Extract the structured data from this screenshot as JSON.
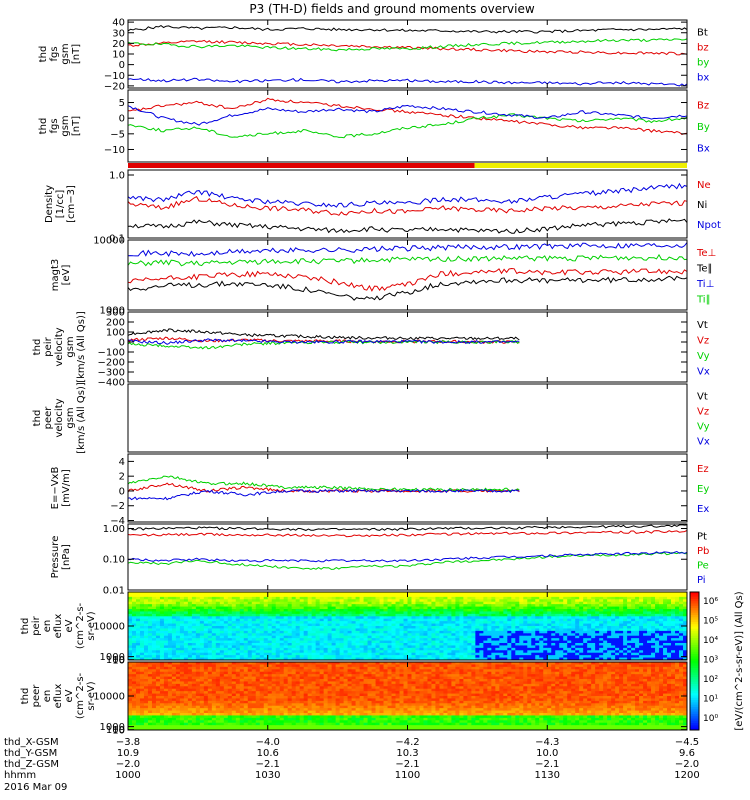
{
  "title": "P3 (TH-D) fields and ground moments overview",
  "colors": {
    "black": "#000000",
    "red": "#e00000",
    "green": "#00d000",
    "blue": "#0000e0",
    "yellow": "#f0f000"
  },
  "chart_data": [
    {
      "type": "line",
      "ylabel": [
        "thd",
        "fgs",
        "gsm",
        "[nT]"
      ],
      "ylim": [
        -22,
        42
      ],
      "yticks": [
        "40",
        "30",
        "20",
        "10",
        "0",
        "−10",
        "−20"
      ],
      "ytickvals": [
        40,
        30,
        20,
        10,
        0,
        -10,
        -20
      ],
      "series": [
        {
          "name": "Bt",
          "color": "black",
          "values": [
            32,
            36,
            34,
            35,
            33,
            34,
            33,
            33,
            32,
            32,
            31,
            31,
            31,
            32,
            33,
            33,
            34
          ]
        },
        {
          "name": "bz",
          "color": "red",
          "values": [
            18,
            20,
            22,
            21,
            20,
            19,
            18,
            17,
            16,
            15,
            14,
            13,
            12,
            12,
            11,
            11,
            10
          ]
        },
        {
          "name": "by",
          "color": "green",
          "values": [
            20,
            19,
            17,
            18,
            16,
            15,
            14,
            15,
            15,
            17,
            19,
            20,
            21,
            22,
            23,
            23,
            24
          ]
        },
        {
          "name": "bx",
          "color": "blue",
          "values": [
            -13,
            -15,
            -14,
            -16,
            -15,
            -14,
            -16,
            -15,
            -15,
            -16,
            -16,
            -17,
            -17,
            -18,
            -17,
            -18,
            -19
          ]
        }
      ]
    },
    {
      "type": "line",
      "ylabel": [
        "thd",
        "fgs",
        "gsm",
        "[nT]"
      ],
      "ylim": [
        -14,
        9
      ],
      "yticks": [
        "5",
        "0",
        "−5",
        "−10"
      ],
      "ytickvals": [
        5,
        0,
        -5,
        -10
      ],
      "series": [
        {
          "name": "Bz",
          "color": "red",
          "values": [
            2,
            4,
            5,
            3,
            6,
            5,
            4,
            3,
            2,
            1,
            0,
            -1,
            -2,
            -3,
            -3,
            -4,
            -5
          ]
        },
        {
          "name": "By",
          "color": "green",
          "values": [
            -2,
            -4,
            -3,
            -6,
            -5,
            -4,
            -6,
            -5,
            -3,
            -2,
            0,
            1,
            0,
            -1,
            0,
            -1,
            0
          ]
        },
        {
          "name": "Bx",
          "color": "blue",
          "values": [
            4,
            0,
            -2,
            1,
            3,
            2,
            3,
            2,
            4,
            3,
            2,
            1,
            0,
            2,
            1,
            0,
            1
          ]
        }
      ]
    },
    {
      "type": "bar",
      "name": "mode-bar",
      "segments": [
        {
          "from": 0,
          "to": 0.62,
          "color": "red"
        },
        {
          "from": 0.62,
          "to": 1,
          "color": "yellow"
        }
      ]
    },
    {
      "type": "line",
      "scale": "log",
      "ylabel": [
        "Density",
        "[1/cc]",
        "[cm−3]"
      ],
      "ylim": [
        0.1,
        1.2
      ],
      "yticks": [
        "1.0",
        "0.1"
      ],
      "ytickvals": [
        1.0,
        0.1
      ],
      "series": [
        {
          "name": "Ne",
          "color": "red",
          "values": [
            0.35,
            0.3,
            0.42,
            0.33,
            0.3,
            0.28,
            0.25,
            0.27,
            0.26,
            0.3,
            0.28,
            0.27,
            0.3,
            0.3,
            0.32,
            0.35,
            0.36
          ]
        },
        {
          "name": "Ni",
          "color": "black",
          "values": [
            0.16,
            0.15,
            0.18,
            0.16,
            0.15,
            0.14,
            0.13,
            0.14,
            0.13,
            0.14,
            0.13,
            0.13,
            0.14,
            0.16,
            0.17,
            0.18,
            0.19
          ]
        },
        {
          "name": "Npot",
          "color": "blue",
          "values": [
            0.45,
            0.4,
            0.55,
            0.42,
            0.38,
            0.35,
            0.33,
            0.36,
            0.35,
            0.42,
            0.4,
            0.38,
            0.45,
            0.5,
            0.55,
            0.62,
            0.68
          ]
        }
      ]
    },
    {
      "type": "line",
      "scale": "log",
      "ylabel": [
        "magt3",
        "[eV]"
      ],
      "ylim": [
        1000,
        10000
      ],
      "yticks": [
        "10000",
        "1000"
      ],
      "ytickvals": [
        10000,
        1000
      ],
      "series": [
        {
          "name": "Te⊥",
          "color": "red",
          "values": [
            2500,
            2800,
            3000,
            3200,
            3300,
            3000,
            2500,
            2000,
            2300,
            3300,
            3500,
            3600,
            3400,
            3500,
            3500,
            3600,
            3600
          ]
        },
        {
          "name": "Te∥",
          "color": "black",
          "values": [
            2000,
            2200,
            2300,
            2400,
            2300,
            2000,
            1600,
            1400,
            1800,
            2400,
            2600,
            2700,
            2600,
            2700,
            2700,
            2800,
            2800
          ]
        },
        {
          "name": "Ti⊥",
          "color": "blue",
          "values": [
            6500,
            6500,
            6200,
            6800,
            7000,
            7200,
            7200,
            7400,
            7600,
            7800,
            8000,
            8000,
            8200,
            8300,
            8400,
            8500,
            8600
          ]
        },
        {
          "name": "Ti∥",
          "color": "green",
          "values": [
            4500,
            4800,
            4600,
            4800,
            5000,
            5000,
            5000,
            5200,
            5300,
            5400,
            5400,
            5500,
            5500,
            5500,
            5600,
            5600,
            5700
          ]
        }
      ]
    },
    {
      "type": "line",
      "ylabel": [
        "thd",
        "peir",
        "velocity",
        "gsm",
        "[km/s (All Qs)]"
      ],
      "ylim": [
        -400,
        300
      ],
      "yticks": [
        "300",
        "200",
        "100",
        "0",
        "−100",
        "−200",
        "−300",
        "−400"
      ],
      "ytickvals": [
        300,
        200,
        100,
        0,
        -100,
        -200,
        -300,
        -400
      ],
      "series": [
        {
          "name": "Vt",
          "color": "black",
          "values": [
            80,
            120,
            100,
            70,
            60,
            50,
            40,
            40,
            35,
            35,
            35
          ]
        },
        {
          "name": "Vz",
          "color": "red",
          "values": [
            20,
            40,
            10,
            20,
            10,
            10,
            5,
            5,
            5,
            0,
            0
          ]
        },
        {
          "name": "Vy",
          "color": "green",
          "values": [
            -20,
            -40,
            -60,
            -20,
            -10,
            0,
            -5,
            0,
            0,
            0,
            0
          ]
        },
        {
          "name": "Vx",
          "color": "blue",
          "values": [
            10,
            -10,
            20,
            10,
            0,
            0,
            5,
            5,
            0,
            0,
            0
          ]
        }
      ]
    },
    {
      "type": "line",
      "ylabel": [
        "thd",
        "peer",
        "velocity",
        "gsm",
        "[km/s (All Qs)]"
      ],
      "ylim": [
        0,
        1
      ],
      "yticks": [],
      "ytickvals": [],
      "series": [
        {
          "name": "Vt",
          "color": "black",
          "values": []
        },
        {
          "name": "Vz",
          "color": "red",
          "values": []
        },
        {
          "name": "Vy",
          "color": "green",
          "values": []
        },
        {
          "name": "Vx",
          "color": "blue",
          "values": []
        }
      ]
    },
    {
      "type": "line",
      "ylabel": [
        "E=−VxB",
        "[mV/m]"
      ],
      "ylim": [
        -4.2,
        5
      ],
      "yticks": [
        "4",
        "2",
        "0",
        "−2",
        "−4"
      ],
      "ytickvals": [
        4,
        2,
        0,
        -2,
        -4
      ],
      "series": [
        {
          "name": "Ez",
          "color": "red",
          "values": [
            0,
            1,
            0,
            0.5,
            0,
            0,
            0,
            0,
            0,
            0,
            0
          ]
        },
        {
          "name": "Ey",
          "color": "green",
          "values": [
            1,
            2,
            1,
            1,
            0.5,
            0.5,
            0.3,
            0.2,
            0.2,
            0.2,
            0.2
          ]
        },
        {
          "name": "Ex",
          "color": "blue",
          "values": [
            -1,
            -1,
            0,
            -0.5,
            0,
            0,
            0,
            0,
            0,
            0,
            0
          ]
        }
      ]
    },
    {
      "type": "line",
      "scale": "log",
      "ylabel": [
        "Pressure",
        "[nPa]"
      ],
      "ylim": [
        0.01,
        1.4
      ],
      "yticks": [
        "1.00",
        "0.10",
        "0.01"
      ],
      "ytickvals": [
        1.0,
        0.1,
        0.01
      ],
      "series": [
        {
          "name": "Pt",
          "color": "black",
          "values": [
            0.95,
            1.0,
            1.05,
            1.0,
            0.98,
            0.95,
            0.92,
            0.93,
            0.95,
            1.0,
            1.02,
            1.05,
            1.1,
            1.12,
            1.15,
            1.2,
            1.25
          ]
        },
        {
          "name": "Pb",
          "color": "red",
          "values": [
            0.6,
            0.62,
            0.65,
            0.62,
            0.62,
            0.6,
            0.58,
            0.6,
            0.62,
            0.66,
            0.68,
            0.7,
            0.72,
            0.74,
            0.75,
            0.78,
            0.8
          ]
        },
        {
          "name": "Pe",
          "color": "green",
          "values": [
            0.08,
            0.07,
            0.09,
            0.07,
            0.06,
            0.05,
            0.05,
            0.06,
            0.06,
            0.08,
            0.09,
            0.1,
            0.12,
            0.13,
            0.14,
            0.15,
            0.16
          ]
        },
        {
          "name": "Pi",
          "color": "blue",
          "values": [
            0.1,
            0.09,
            0.1,
            0.09,
            0.09,
            0.09,
            0.09,
            0.09,
            0.09,
            0.1,
            0.11,
            0.12,
            0.13,
            0.14,
            0.15,
            0.16,
            0.17
          ]
        }
      ]
    },
    {
      "type": "heatmap",
      "ylabel": [
        "thd",
        "peir",
        "en",
        "eflux",
        "eV",
        "(cm^2-s-",
        "sr-eV)"
      ],
      "ylim": [
        5,
        20000
      ],
      "yticks": [
        "10000",
        "1000",
        "100",
        "10"
      ],
      "ytickvals": [
        10000,
        1000,
        100,
        10
      ]
    },
    {
      "type": "heatmap",
      "ylabel": [
        "thd",
        "peer",
        "en",
        "eflux",
        "eV",
        "(cm^2-s-",
        "sr-eV)"
      ],
      "ylim": [
        5,
        20000
      ],
      "yticks": [
        "10000",
        "1000",
        "100",
        "10"
      ],
      "ytickvals": [
        10000,
        1000,
        100,
        10
      ]
    }
  ],
  "colorbar": {
    "ticks": [
      "10⁶",
      "10⁵",
      "10⁴",
      "10³",
      "10²",
      "10¹",
      "10⁰"
    ],
    "label": "[eV/(cm^2-s-sr-eV)] (All Qs)"
  },
  "xaxis": {
    "rows": [
      {
        "label": "thd_X-GSM",
        "values": [
          "−3.8",
          "−4.0",
          "−4.2",
          "−4.3",
          "−4.5"
        ]
      },
      {
        "label": "thd_Y-GSM",
        "values": [
          "10.9",
          "10.6",
          "10.3",
          "10.0",
          "9.6"
        ]
      },
      {
        "label": "thd_Z-GSM",
        "values": [
          "−2.0",
          "−2.1",
          "−2.1",
          "−2.1",
          "−2.0"
        ]
      },
      {
        "label": "hhmm",
        "values": [
          "1000",
          "1030",
          "1100",
          "1130",
          "1200"
        ]
      }
    ],
    "date": "2016 Mar 09"
  }
}
